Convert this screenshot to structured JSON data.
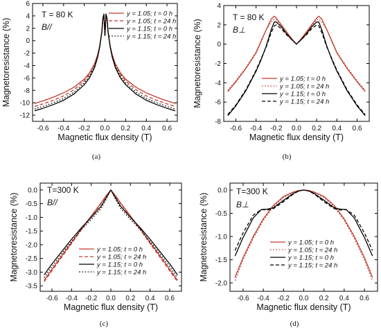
{
  "colors": {
    "red": "#c0392b",
    "black": "#000000"
  },
  "legend_entries": [
    "y = 1.05; t = 0 h",
    "y = 1.05; t = 24 h",
    "y = 1.15; t = 0 h",
    "y = 1.15; t = 24 h"
  ],
  "chart_data": [
    {
      "panel": "(a)",
      "type": "line",
      "annotation": [
        "T = 80 K",
        "B//"
      ],
      "xlabel": "Magnetic flux density (T)",
      "ylabel": "Magnetoresistance (%)",
      "xlim": [
        -0.7,
        0.7
      ],
      "ylim": [
        -13,
        6
      ],
      "xticks": [
        -0.6,
        -0.4,
        -0.2,
        0.0,
        0.2,
        0.4,
        0.6
      ],
      "xticklabels": [
        "-0.6",
        "-0.4",
        "-0.2",
        "0.0",
        "0.2",
        "0.4",
        "0.6"
      ],
      "yticks": [
        -12,
        -10,
        -8,
        -6,
        -4,
        -2,
        0,
        2,
        4,
        6
      ],
      "yticklabels": [
        "-12",
        "-10",
        "-8",
        "-6",
        "-4",
        "-2",
        "0",
        "2",
        "4",
        "6"
      ],
      "legend": "top-right",
      "series": [
        {
          "name": "y = 1.05; t = 0 h",
          "color": "red",
          "dash": "solid",
          "x": [
            -0.68,
            -0.6,
            -0.5,
            -0.4,
            -0.3,
            -0.2,
            -0.15,
            -0.1,
            -0.07,
            -0.05,
            -0.03,
            -0.02,
            -0.01,
            0,
            0.01,
            0.02,
            0.03,
            0.05,
            0.07,
            0.1,
            0.15,
            0.2,
            0.3,
            0.4,
            0.5,
            0.6,
            0.68
          ],
          "y": [
            -10.1,
            -9.7,
            -9.1,
            -8.4,
            -7.5,
            -6.2,
            -5.2,
            -3.7,
            -2.2,
            -0.8,
            1.5,
            3.5,
            4.2,
            0.8,
            4.2,
            3.5,
            1.5,
            -0.8,
            -2.2,
            -3.7,
            -5.2,
            -6.2,
            -7.5,
            -8.4,
            -9.1,
            -9.7,
            -10.1
          ]
        },
        {
          "name": "y = 1.05; t = 24 h",
          "color": "red",
          "dash": "dash",
          "x": [
            -0.68,
            -0.6,
            -0.5,
            -0.4,
            -0.3,
            -0.2,
            -0.15,
            -0.1,
            -0.07,
            -0.05,
            -0.03,
            -0.02,
            -0.01,
            0,
            0.01,
            0.02,
            0.03,
            0.05,
            0.07,
            0.1,
            0.15,
            0.2,
            0.3,
            0.4,
            0.5,
            0.6,
            0.68
          ],
          "y": [
            -10.6,
            -10.2,
            -9.6,
            -8.9,
            -7.9,
            -6.5,
            -5.4,
            -3.8,
            -2.3,
            -0.9,
            1.4,
            3.4,
            4.1,
            0.8,
            4.1,
            3.4,
            1.4,
            -0.9,
            -2.3,
            -3.8,
            -5.4,
            -6.5,
            -7.9,
            -8.9,
            -9.6,
            -10.2,
            -10.6
          ]
        },
        {
          "name": "y = 1.15; t = 0 h",
          "color": "black",
          "dash": "solid",
          "x": [
            -0.68,
            -0.6,
            -0.5,
            -0.4,
            -0.3,
            -0.2,
            -0.15,
            -0.1,
            -0.07,
            -0.05,
            -0.03,
            -0.02,
            -0.01,
            0,
            0.01,
            0.02,
            0.03,
            0.05,
            0.07,
            0.1,
            0.15,
            0.2,
            0.3,
            0.4,
            0.5,
            0.6,
            0.68
          ],
          "y": [
            -11.3,
            -10.9,
            -10.3,
            -9.6,
            -8.6,
            -7.1,
            -6.0,
            -4.3,
            -2.6,
            -1.0,
            1.4,
            3.6,
            4.3,
            0.9,
            4.3,
            3.6,
            1.4,
            -1.0,
            -2.6,
            -4.3,
            -6.0,
            -7.1,
            -8.6,
            -9.6,
            -10.3,
            -10.9,
            -11.3
          ]
        },
        {
          "name": "y = 1.15; t = 24 h",
          "color": "black",
          "dash": "dot",
          "x": [
            -0.68,
            -0.6,
            -0.5,
            -0.4,
            -0.3,
            -0.2,
            -0.15,
            -0.1,
            -0.07,
            -0.05,
            -0.03,
            -0.02,
            -0.01,
            0,
            0.01,
            0.02,
            0.03,
            0.05,
            0.07,
            0.1,
            0.15,
            0.2,
            0.3,
            0.4,
            0.5,
            0.6,
            0.68
          ],
          "y": [
            -11.0,
            -10.6,
            -10.0,
            -9.3,
            -8.3,
            -6.8,
            -5.7,
            -4.0,
            -2.4,
            -0.9,
            1.4,
            3.5,
            4.2,
            0.9,
            4.2,
            3.5,
            1.4,
            -0.9,
            -2.4,
            -4.0,
            -5.7,
            -6.8,
            -8.3,
            -9.3,
            -10.0,
            -10.6,
            -11.0
          ]
        }
      ]
    },
    {
      "panel": "(b)",
      "type": "line",
      "annotation": [
        "T = 80 K",
        "B⊥"
      ],
      "xlabel": "Magnetic flux density (T)",
      "ylabel": "Magnetoresistance (%)",
      "xlim": [
        -0.72,
        0.72
      ],
      "ylim": [
        -8,
        4
      ],
      "xticks": [
        -0.6,
        -0.4,
        -0.2,
        0.0,
        0.2,
        0.4,
        0.6
      ],
      "xticklabels": [
        "-0.6",
        "-0.4",
        "-0.2",
        "0.0",
        "0.2",
        "0.4",
        "0.6"
      ],
      "yticks": [
        -8,
        -6,
        -4,
        -2,
        0,
        2,
        4
      ],
      "yticklabels": [
        "-8",
        "-6",
        "-4",
        "-2",
        "0",
        "2",
        "4"
      ],
      "legend": "bottom-center",
      "series": [
        {
          "name": "y = 1.05; t = 0 h",
          "color": "red",
          "dash": "solid",
          "x": [
            -0.68,
            -0.6,
            -0.5,
            -0.4,
            -0.35,
            -0.3,
            -0.25,
            -0.22,
            -0.2,
            -0.15,
            -0.1,
            -0.05,
            0,
            0.05,
            0.1,
            0.15,
            0.2,
            0.22,
            0.25,
            0.3,
            0.35,
            0.4,
            0.5,
            0.6,
            0.68
          ],
          "y": [
            -4.9,
            -3.9,
            -2.5,
            -0.9,
            0.3,
            1.5,
            2.6,
            2.9,
            2.7,
            2.0,
            1.3,
            0.6,
            0,
            0.6,
            1.3,
            2.0,
            2.7,
            2.9,
            2.6,
            1.5,
            0.3,
            -0.9,
            -2.5,
            -3.9,
            -4.9
          ]
        },
        {
          "name": "y = 1.05; t = 24 h",
          "color": "red",
          "dash": "dot",
          "x": [
            -0.68,
            -0.6,
            -0.5,
            -0.4,
            -0.35,
            -0.3,
            -0.25,
            -0.22,
            -0.2,
            -0.15,
            -0.1,
            -0.05,
            0,
            0.05,
            0.1,
            0.15,
            0.2,
            0.22,
            0.25,
            0.3,
            0.35,
            0.4,
            0.5,
            0.6,
            0.68
          ],
          "y": [
            -4.8,
            -3.8,
            -2.4,
            -0.8,
            0.4,
            1.5,
            2.3,
            2.6,
            2.5,
            1.9,
            1.2,
            0.6,
            0,
            0.6,
            1.2,
            1.9,
            2.5,
            2.6,
            2.3,
            1.5,
            0.4,
            -0.8,
            -2.4,
            -3.8,
            -4.8
          ]
        },
        {
          "name": "y = 1.15; t = 0 h",
          "color": "black",
          "dash": "solid",
          "x": [
            -0.68,
            -0.6,
            -0.5,
            -0.4,
            -0.35,
            -0.3,
            -0.25,
            -0.22,
            -0.2,
            -0.15,
            -0.1,
            -0.05,
            0,
            0.05,
            0.1,
            0.15,
            0.2,
            0.22,
            0.25,
            0.3,
            0.35,
            0.4,
            0.5,
            0.6,
            0.68
          ],
          "y": [
            -7.4,
            -6.4,
            -4.8,
            -2.8,
            -1.6,
            -0.2,
            1.5,
            2.3,
            2.3,
            1.8,
            1.1,
            0.5,
            0,
            0.5,
            1.1,
            1.8,
            2.3,
            2.3,
            1.5,
            -0.2,
            -1.6,
            -2.8,
            -4.8,
            -6.4,
            -7.4
          ]
        },
        {
          "name": "y = 1.15; t = 24 h",
          "color": "black",
          "dash": "dash",
          "x": [
            -0.68,
            -0.6,
            -0.5,
            -0.4,
            -0.35,
            -0.3,
            -0.25,
            -0.22,
            -0.2,
            -0.15,
            -0.1,
            -0.05,
            0,
            0.05,
            0.1,
            0.15,
            0.2,
            0.22,
            0.25,
            0.3,
            0.35,
            0.4,
            0.5,
            0.6,
            0.68
          ],
          "y": [
            -7.3,
            -6.3,
            -4.7,
            -2.7,
            -1.5,
            -0.3,
            1.2,
            1.9,
            2.0,
            1.6,
            1.0,
            0.5,
            0,
            0.5,
            1.0,
            1.6,
            2.0,
            1.9,
            1.2,
            -0.3,
            -1.5,
            -2.7,
            -4.7,
            -6.3,
            -7.3
          ]
        }
      ]
    },
    {
      "panel": "(c)",
      "type": "line",
      "annotation": [
        "T=300 K",
        "B//"
      ],
      "xlabel": "Magnetic flux density (T)",
      "ylabel": "Magnetoresistance (%)",
      "xlim": [
        -0.72,
        0.72
      ],
      "ylim": [
        -3.7,
        0.25
      ],
      "xticks": [
        -0.6,
        -0.4,
        -0.2,
        0.0,
        0.2,
        0.4,
        0.6
      ],
      "xticklabels": [
        "-0.6",
        "-0.4",
        "-0.2",
        "0.0",
        "0.2",
        "0.4",
        "0.6"
      ],
      "yticks": [
        -3.5,
        -3.0,
        -2.5,
        -2.0,
        -1.5,
        -1.0,
        -0.5,
        0.0
      ],
      "yticklabels": [
        "-3.5",
        "-3.0",
        "-2.5",
        "-2.0",
        "-1.5",
        "-1.0",
        "-0.5",
        "0.0"
      ],
      "legend": "bottom-center",
      "series": [
        {
          "name": "y = 1.05; t = 0 h",
          "color": "red",
          "dash": "solid",
          "x": [
            -0.68,
            -0.6,
            -0.5,
            -0.4,
            -0.3,
            -0.2,
            -0.1,
            -0.05,
            0,
            0.05,
            0.1,
            0.2,
            0.3,
            0.4,
            0.5,
            0.6,
            0.68
          ],
          "y": [
            -3.3,
            -2.9,
            -2.4,
            -1.92,
            -1.42,
            -0.95,
            -0.48,
            -0.22,
            0,
            -0.22,
            -0.48,
            -0.95,
            -1.42,
            -1.92,
            -2.4,
            -2.9,
            -3.3
          ]
        },
        {
          "name": "y = 1.05; t = 24 h",
          "color": "red",
          "dash": "dash",
          "x": [
            -0.68,
            -0.6,
            -0.5,
            -0.4,
            -0.3,
            -0.2,
            -0.1,
            -0.05,
            0,
            0.05,
            0.1,
            0.2,
            0.3,
            0.4,
            0.5,
            0.6,
            0.68
          ],
          "y": [
            -3.35,
            -2.95,
            -2.45,
            -1.96,
            -1.45,
            -0.98,
            -0.5,
            -0.24,
            0,
            -0.24,
            -0.5,
            -0.98,
            -1.45,
            -1.96,
            -2.45,
            -2.95,
            -3.35
          ]
        },
        {
          "name": "y = 1.15; t = 0 h",
          "color": "black",
          "dash": "solid",
          "x": [
            -0.68,
            -0.6,
            -0.5,
            -0.4,
            -0.3,
            -0.2,
            -0.1,
            -0.05,
            0,
            0.05,
            0.1,
            0.2,
            0.3,
            0.4,
            0.5,
            0.6,
            0.68
          ],
          "y": [
            -3.1,
            -2.7,
            -2.25,
            -1.8,
            -1.38,
            -1.0,
            -0.6,
            -0.3,
            0,
            -0.3,
            -0.6,
            -1.0,
            -1.38,
            -1.8,
            -2.25,
            -2.7,
            -3.1
          ]
        },
        {
          "name": "y = 1.15; t = 24 h",
          "color": "black",
          "dash": "dot",
          "x": [
            -0.68,
            -0.6,
            -0.5,
            -0.4,
            -0.3,
            -0.2,
            -0.1,
            -0.05,
            0,
            0.05,
            0.1,
            0.2,
            0.3,
            0.4,
            0.5,
            0.6,
            0.68
          ],
          "y": [
            -3.2,
            -2.8,
            -2.33,
            -1.88,
            -1.45,
            -1.08,
            -0.68,
            -0.35,
            0,
            -0.35,
            -0.68,
            -1.08,
            -1.45,
            -1.88,
            -2.33,
            -2.8,
            -3.2
          ]
        }
      ]
    },
    {
      "panel": "(d)",
      "type": "line",
      "annotation": [
        "T=300 K",
        "B⊥"
      ],
      "xlabel": "Magnetic flux density (T)",
      "ylabel": "Magnetoresistance (%)",
      "xlim": [
        -0.73,
        0.73
      ],
      "ylim": [
        -2.18,
        0.15
      ],
      "xticks": [
        -0.6,
        -0.4,
        -0.2,
        0.0,
        0.2,
        0.4,
        0.6
      ],
      "xticklabels": [
        "-0.6",
        "-0.4",
        "-0.2",
        "0.0",
        "0.2",
        "0.4",
        "0.6"
      ],
      "yticks": [
        -2.0,
        -1.5,
        -1.0,
        -0.5,
        0.0
      ],
      "yticklabels": [
        "-2.0",
        "-1.5",
        "-1.0",
        "-0.5",
        "0.0"
      ],
      "legend": "bottom-center",
      "series": [
        {
          "name": "y = 1.05; t = 0 h",
          "color": "red",
          "dash": "solid",
          "x": [
            -0.68,
            -0.6,
            -0.5,
            -0.4,
            -0.3,
            -0.2,
            -0.1,
            -0.05,
            0,
            0.05,
            0.1,
            0.2,
            0.3,
            0.4,
            0.5,
            0.6,
            0.68
          ],
          "y": [
            -1.88,
            -1.45,
            -1.0,
            -0.62,
            -0.33,
            -0.14,
            -0.04,
            -0.01,
            0,
            -0.01,
            -0.04,
            -0.14,
            -0.33,
            -0.62,
            -1.0,
            -1.45,
            -1.88
          ]
        },
        {
          "name": "y = 1.05; t = 24 h",
          "color": "red",
          "dash": "dot",
          "x": [
            -0.68,
            -0.6,
            -0.5,
            -0.4,
            -0.3,
            -0.2,
            -0.1,
            -0.05,
            0,
            0.05,
            0.1,
            0.2,
            0.3,
            0.4,
            0.5,
            0.6,
            0.68
          ],
          "y": [
            -1.95,
            -1.5,
            -1.04,
            -0.65,
            -0.36,
            -0.16,
            -0.05,
            -0.01,
            0,
            -0.01,
            -0.05,
            -0.16,
            -0.36,
            -0.65,
            -1.04,
            -1.5,
            -1.95
          ]
        },
        {
          "name": "y = 1.15; t = 0 h",
          "color": "black",
          "dash": "solid",
          "x": [
            -0.68,
            -0.6,
            -0.5,
            -0.42,
            -0.36,
            -0.3,
            -0.2,
            -0.1,
            -0.05,
            0,
            0.05,
            0.1,
            0.2,
            0.3,
            0.36,
            0.42,
            0.5,
            0.6,
            0.68
          ],
          "y": [
            -1.42,
            -1.02,
            -0.6,
            -0.42,
            -0.41,
            -0.38,
            -0.22,
            -0.07,
            -0.02,
            0,
            -0.02,
            -0.07,
            -0.22,
            -0.38,
            -0.41,
            -0.42,
            -0.6,
            -1.02,
            -1.42
          ]
        },
        {
          "name": "y = 1.15; t = 24 h",
          "color": "black",
          "dash": "dash",
          "x": [
            -0.68,
            -0.6,
            -0.5,
            -0.42,
            -0.36,
            -0.3,
            -0.2,
            -0.1,
            -0.05,
            0,
            0.05,
            0.1,
            0.2,
            0.3,
            0.36,
            0.42,
            0.5,
            0.6,
            0.68
          ],
          "y": [
            -1.3,
            -0.92,
            -0.54,
            -0.42,
            -0.43,
            -0.4,
            -0.25,
            -0.08,
            -0.02,
            0,
            -0.02,
            -0.08,
            -0.25,
            -0.4,
            -0.43,
            -0.42,
            -0.54,
            -0.92,
            -1.3
          ]
        }
      ]
    }
  ]
}
